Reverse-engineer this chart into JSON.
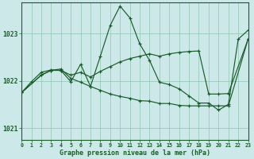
{
  "title": "Graphe pression niveau de la mer (hPa)",
  "bg_color": "#cce8e8",
  "grid_color": "#99ccbb",
  "line_color": "#1a5c2a",
  "xlim": [
    0,
    23
  ],
  "ylim": [
    1020.75,
    1023.65
  ],
  "yticks": [
    1021,
    1022,
    1023
  ],
  "xticks": [
    0,
    1,
    2,
    3,
    4,
    5,
    6,
    7,
    8,
    9,
    10,
    11,
    12,
    13,
    14,
    15,
    16,
    17,
    18,
    19,
    20,
    21,
    22,
    23
  ],
  "series1_x": [
    0,
    1,
    2,
    3,
    4,
    5,
    6,
    7,
    8,
    9,
    10,
    11,
    12,
    13,
    14,
    15,
    16,
    17,
    18,
    19,
    20,
    21,
    22,
    23
  ],
  "series1_y": [
    1021.75,
    1021.98,
    1022.18,
    1022.23,
    1022.22,
    1021.98,
    1022.35,
    1021.88,
    1022.52,
    1023.17,
    1023.58,
    1023.33,
    1022.78,
    1022.43,
    1021.97,
    1021.92,
    1021.83,
    1021.68,
    1021.53,
    1021.53,
    1021.38,
    1021.5,
    1022.88,
    1023.07
  ],
  "series2_x": [
    0,
    2,
    3,
    4,
    5,
    6,
    7,
    8,
    9,
    10,
    11,
    12,
    13,
    14,
    15,
    16,
    17,
    18,
    19,
    20,
    21,
    23
  ],
  "series2_y": [
    1021.75,
    1022.12,
    1022.22,
    1022.22,
    1022.12,
    1022.18,
    1022.08,
    1022.2,
    1022.3,
    1022.4,
    1022.47,
    1022.52,
    1022.57,
    1022.52,
    1022.57,
    1022.6,
    1022.62,
    1022.63,
    1021.72,
    1021.72,
    1021.73,
    1022.88
  ],
  "series3_x": [
    0,
    2,
    3,
    4,
    5,
    6,
    7,
    8,
    9,
    10,
    11,
    12,
    13,
    14,
    15,
    16,
    17,
    18,
    19,
    20,
    21,
    23
  ],
  "series3_y": [
    1021.75,
    1022.12,
    1022.22,
    1022.25,
    1022.05,
    1021.97,
    1021.88,
    1021.8,
    1021.72,
    1021.67,
    1021.63,
    1021.58,
    1021.57,
    1021.52,
    1021.52,
    1021.48,
    1021.47,
    1021.47,
    1021.47,
    1021.47,
    1021.47,
    1022.88
  ]
}
